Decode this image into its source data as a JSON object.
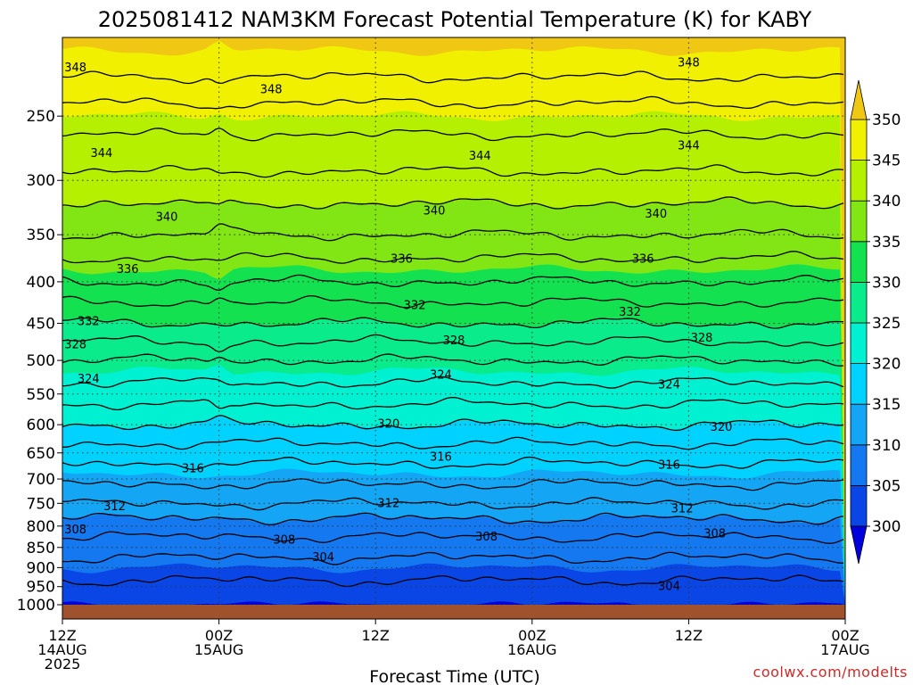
{
  "title": "2025081412 NAM3KM Forecast Potential Temperature (K) for KABY",
  "credit": "coolwx.com/modelts",
  "colors": {
    "ground": "#a0522d",
    "contour": "#000000",
    "grid": "#333333"
  },
  "chart_data": {
    "type": "heatmap",
    "title": "2025081412 NAM3KM Forecast Potential Temperature (K) for KABY",
    "xlabel": "Forecast Time (UTC)",
    "ylabel": "",
    "x_range_hours": [
      0,
      60
    ],
    "y_range_hpa": [
      1000,
      200
    ],
    "y_scale": "log-pressure",
    "y_ticks": [
      250,
      300,
      350,
      400,
      450,
      500,
      550,
      600,
      650,
      700,
      750,
      800,
      850,
      900,
      950,
      1000
    ],
    "x_ticks": [
      {
        "hour": 0,
        "lines": [
          "12Z",
          "14AUG",
          "2025"
        ]
      },
      {
        "hour": 12,
        "lines": [
          "00Z",
          "15AUG"
        ]
      },
      {
        "hour": 24,
        "lines": [
          "12Z"
        ]
      },
      {
        "hour": 36,
        "lines": [
          "00Z",
          "16AUG"
        ]
      },
      {
        "hour": 48,
        "lines": [
          "12Z"
        ]
      },
      {
        "hour": 60,
        "lines": [
          "00Z",
          "17AUG"
        ]
      }
    ],
    "grid": true,
    "colorbar": {
      "levels": [
        300,
        305,
        310,
        315,
        320,
        325,
        330,
        335,
        340,
        345,
        350
      ],
      "labels": [
        "300",
        "305",
        "310",
        "315",
        "320",
        "325",
        "330",
        "335",
        "340",
        "345",
        "350"
      ],
      "colors": [
        "#0000dc",
        "#0a46e6",
        "#1478f0",
        "#14a5f5",
        "#00d2ff",
        "#00f0d2",
        "#0aeb8c",
        "#14e150",
        "#82e614",
        "#b4f000",
        "#f0f000",
        "#f0c814"
      ],
      "extend": "both"
    },
    "level_profile": [
      {
        "p": 1000,
        "theta": 301
      },
      {
        "p": 950,
        "theta": 303.5
      },
      {
        "p": 900,
        "theta": 305
      },
      {
        "p": 850,
        "theta": 307
      },
      {
        "p": 800,
        "theta": 309
      },
      {
        "p": 750,
        "theta": 312
      },
      {
        "p": 700,
        "theta": 314.5
      },
      {
        "p": 650,
        "theta": 317
      },
      {
        "p": 600,
        "theta": 320
      },
      {
        "p": 550,
        "theta": 323
      },
      {
        "p": 500,
        "theta": 326
      },
      {
        "p": 450,
        "theta": 330
      },
      {
        "p": 400,
        "theta": 334
      },
      {
        "p": 350,
        "theta": 338
      },
      {
        "p": 300,
        "theta": 341.5
      },
      {
        "p": 250,
        "theta": 345
      },
      {
        "p": 200,
        "theta": 351
      }
    ],
    "contour_levels": [
      304,
      306,
      308,
      310,
      312,
      314,
      316,
      318,
      320,
      322,
      324,
      326,
      328,
      330,
      332,
      334,
      336,
      338,
      340,
      342,
      344,
      346,
      348
    ],
    "contour_labels": [
      {
        "value": "348",
        "hour": 1.0,
        "p": 218
      },
      {
        "value": "348",
        "hour": 16.0,
        "p": 232
      },
      {
        "value": "348",
        "hour": 48.0,
        "p": 215
      },
      {
        "value": "344",
        "hour": 3.0,
        "p": 278
      },
      {
        "value": "344",
        "hour": 32.0,
        "p": 280
      },
      {
        "value": "344",
        "hour": 48.0,
        "p": 272
      },
      {
        "value": "340",
        "hour": 8.0,
        "p": 333
      },
      {
        "value": "340",
        "hour": 28.5,
        "p": 327
      },
      {
        "value": "340",
        "hour": 45.5,
        "p": 330
      },
      {
        "value": "336",
        "hour": 5.0,
        "p": 386
      },
      {
        "value": "336",
        "hour": 26.0,
        "p": 375
      },
      {
        "value": "336",
        "hour": 44.5,
        "p": 375
      },
      {
        "value": "332",
        "hour": 2.0,
        "p": 448
      },
      {
        "value": "332",
        "hour": 27.0,
        "p": 428
      },
      {
        "value": "332",
        "hour": 43.5,
        "p": 436
      },
      {
        "value": "328",
        "hour": 1.0,
        "p": 478
      },
      {
        "value": "328",
        "hour": 30.0,
        "p": 473
      },
      {
        "value": "328",
        "hour": 49.0,
        "p": 469
      },
      {
        "value": "324",
        "hour": 2.0,
        "p": 527
      },
      {
        "value": "324",
        "hour": 29.0,
        "p": 521
      },
      {
        "value": "324",
        "hour": 46.5,
        "p": 536
      },
      {
        "value": "320",
        "hour": 25.0,
        "p": 599
      },
      {
        "value": "320",
        "hour": 50.5,
        "p": 604
      },
      {
        "value": "316",
        "hour": 10.0,
        "p": 680
      },
      {
        "value": "316",
        "hour": 29.0,
        "p": 658
      },
      {
        "value": "316",
        "hour": 46.5,
        "p": 673
      },
      {
        "value": "312",
        "hour": 4.0,
        "p": 757
      },
      {
        "value": "312",
        "hour": 25.0,
        "p": 750
      },
      {
        "value": "312",
        "hour": 47.5,
        "p": 762
      },
      {
        "value": "308",
        "hour": 1.0,
        "p": 808
      },
      {
        "value": "308",
        "hour": 17.0,
        "p": 832
      },
      {
        "value": "308",
        "hour": 32.5,
        "p": 825
      },
      {
        "value": "308",
        "hour": 50.0,
        "p": 818
      },
      {
        "value": "304",
        "hour": 20.0,
        "p": 875
      },
      {
        "value": "304",
        "hour": 46.5,
        "p": 950
      }
    ]
  }
}
